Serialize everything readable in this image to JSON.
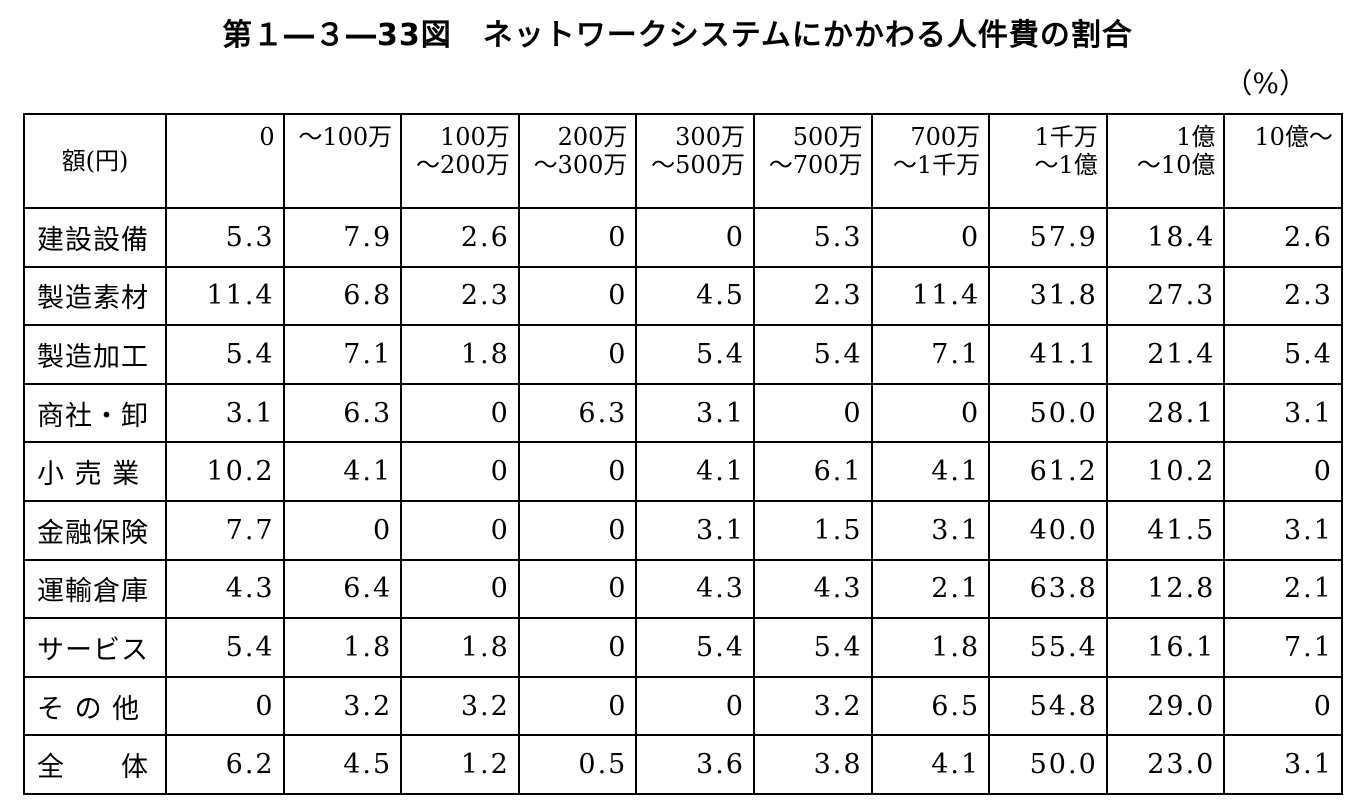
{
  "title": "第１―３―33図　ネットワークシステムにかかわる人件費の割合",
  "unit": "（%）",
  "table": {
    "corner_label": "額(円)",
    "columns": [
      {
        "line1": "0",
        "line2": ""
      },
      {
        "line1": "～100万",
        "line2": ""
      },
      {
        "line1": "100万",
        "line2": "～200万"
      },
      {
        "line1": "200万",
        "line2": "～300万"
      },
      {
        "line1": "300万",
        "line2": "～500万"
      },
      {
        "line1": "500万",
        "line2": "～700万"
      },
      {
        "line1": "700万",
        "line2": "～1千万"
      },
      {
        "line1": "1千万",
        "line2": "～1億"
      },
      {
        "line1": "1億",
        "line2": "～10億"
      },
      {
        "line1": "10億～",
        "line2": ""
      }
    ],
    "rows": [
      {
        "label": "建設設備",
        "values": [
          "5.3",
          "7.9",
          "2.6",
          "0",
          "0",
          "5.3",
          "0",
          "57.9",
          "18.4",
          "2.6"
        ]
      },
      {
        "label": "製造素材",
        "values": [
          "11.4",
          "6.8",
          "2.3",
          "0",
          "4.5",
          "2.3",
          "11.4",
          "31.8",
          "27.3",
          "2.3"
        ]
      },
      {
        "label": "製造加工",
        "values": [
          "5.4",
          "7.1",
          "1.8",
          "0",
          "5.4",
          "5.4",
          "7.1",
          "41.1",
          "21.4",
          "5.4"
        ]
      },
      {
        "label": "商社・卸",
        "values": [
          "3.1",
          "6.3",
          "0",
          "6.3",
          "3.1",
          "0",
          "0",
          "50.0",
          "28.1",
          "3.1"
        ]
      },
      {
        "label": "小 売 業",
        "values": [
          "10.2",
          "4.1",
          "0",
          "0",
          "4.1",
          "6.1",
          "4.1",
          "61.2",
          "10.2",
          "0"
        ]
      },
      {
        "label": "金融保険",
        "values": [
          "7.7",
          "0",
          "0",
          "0",
          "3.1",
          "1.5",
          "3.1",
          "40.0",
          "41.5",
          "3.1"
        ]
      },
      {
        "label": "運輸倉庫",
        "values": [
          "4.3",
          "6.4",
          "0",
          "0",
          "4.3",
          "4.3",
          "2.1",
          "63.8",
          "12.8",
          "2.1"
        ]
      },
      {
        "label": "サービス",
        "values": [
          "5.4",
          "1.8",
          "1.8",
          "0",
          "5.4",
          "5.4",
          "1.8",
          "55.4",
          "16.1",
          "7.1"
        ]
      },
      {
        "label": "そ の 他",
        "values": [
          "0",
          "3.2",
          "3.2",
          "0",
          "0",
          "3.2",
          "6.5",
          "54.8",
          "29.0",
          "0"
        ]
      },
      {
        "label": "全　　体",
        "values": [
          "6.2",
          "4.5",
          "1.2",
          "0.5",
          "3.6",
          "3.8",
          "4.1",
          "50.0",
          "23.0",
          "3.1"
        ]
      }
    ]
  }
}
